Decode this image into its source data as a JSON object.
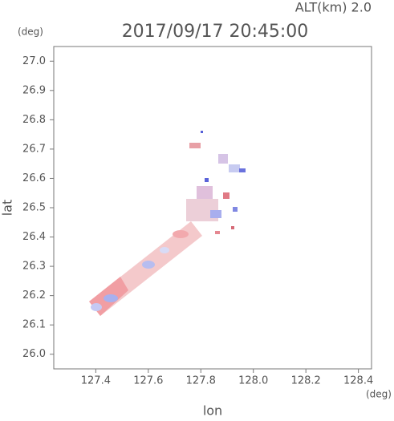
{
  "header": "ALT(km) 2.0",
  "chart_data": {
    "type": "scatter",
    "title": "2017/09/17 20:45:00",
    "x_label": "lon",
    "y_label": "lat",
    "x_unit": "(deg)",
    "y_unit": "(deg)",
    "xlim": [
      127.24,
      128.45
    ],
    "xticks": [
      127.4,
      127.6,
      127.8,
      {
        "value": 128,
        "label": "128.0"
      },
      128.2,
      128.4
    ],
    "ylim": [
      25.95,
      27.05
    ],
    "yticks": [
      {
        "value": 26,
        "label": "26.0"
      },
      26.1,
      26.2,
      26.3,
      26.4,
      26.5,
      26.6,
      26.7,
      26.8,
      26.9,
      {
        "value": 27,
        "label": "27.0"
      }
    ]
  }
}
